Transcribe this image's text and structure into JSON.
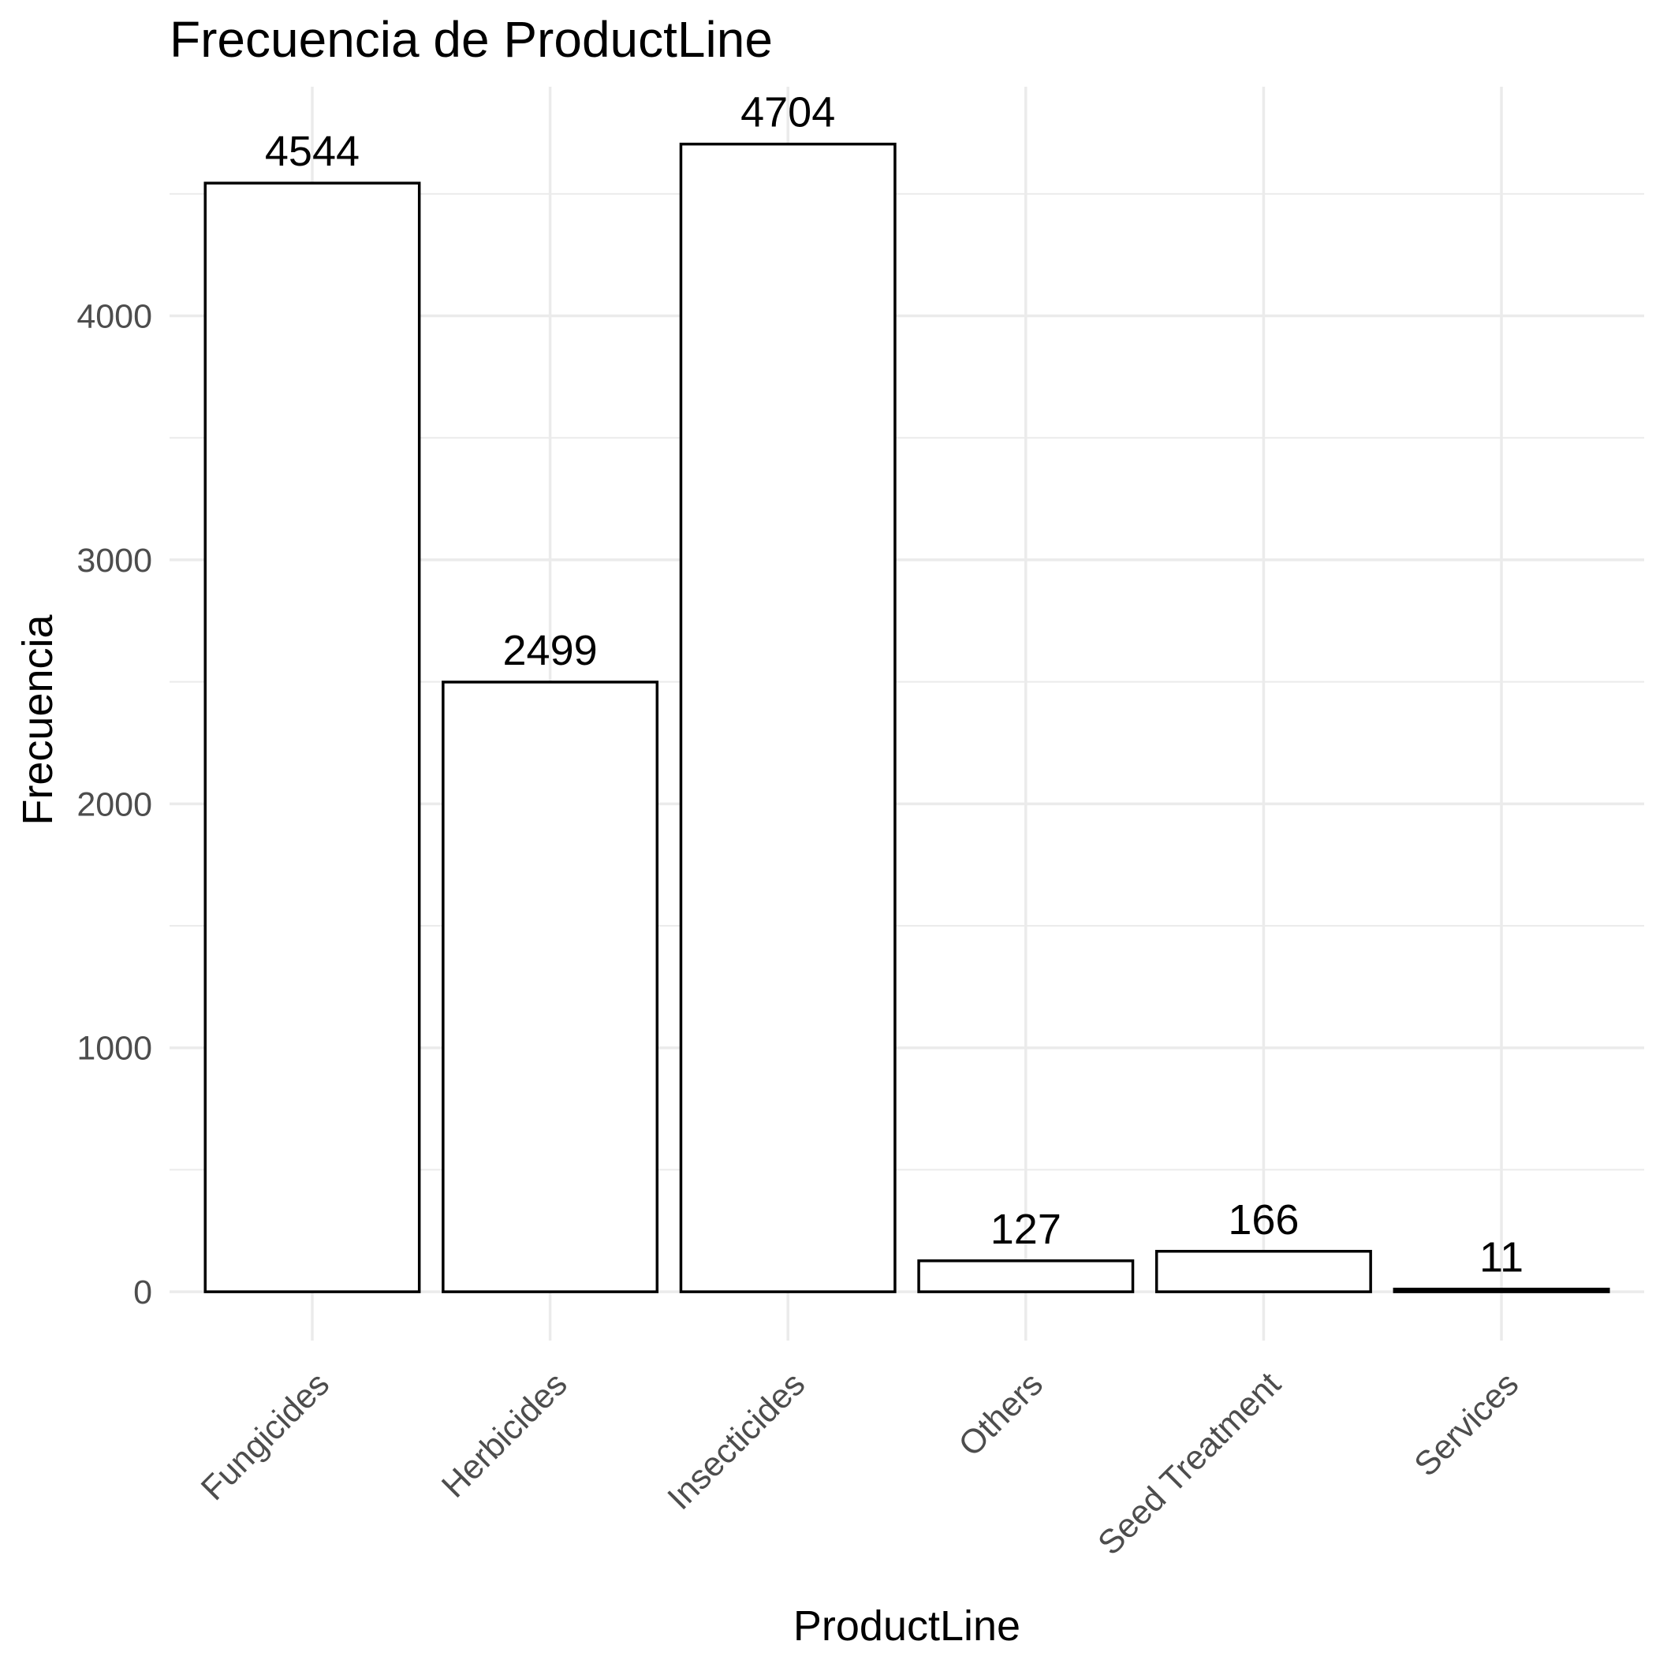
{
  "chart_data": {
    "type": "bar",
    "title": "Frecuencia de ProductLine",
    "xlabel": "ProductLine",
    "ylabel": "Frecuencia",
    "categories": [
      "Fungicides",
      "Herbicides",
      "Insecticides",
      "Others",
      "Seed Treatment",
      "Services"
    ],
    "values": [
      4544,
      2499,
      4704,
      127,
      166,
      11
    ],
    "data_labels": [
      "4544",
      "2499",
      "4704",
      "127",
      "166",
      "11"
    ],
    "yticks": [
      0,
      1000,
      2000,
      3000,
      4000
    ],
    "ytick_labels": [
      "0",
      "1000",
      "2000",
      "3000",
      "4000"
    ],
    "ylim": [
      -200,
      4939
    ],
    "grid": true,
    "bar_fill": "#ffffff",
    "bar_outline": "#000000",
    "grid_color": "#ebebeb",
    "tick_label_color": "#4d4d4d"
  }
}
